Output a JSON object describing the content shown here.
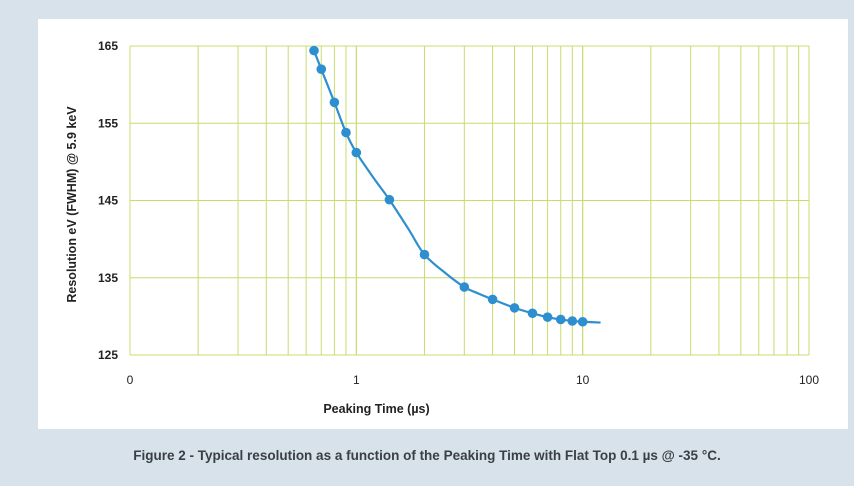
{
  "figure": {
    "caption": "Figure 2 - Typical resolution as a function of the Peaking Time  with Flat Top 0.1 µs @ -35 °C."
  },
  "colors": {
    "background": "#d8e2ea",
    "grid": "#c8dc6e",
    "series": "#2e8fd0"
  },
  "chart_data": {
    "type": "scatter",
    "xlabel": "Peaking Time (µs)",
    "ylabel": "Resolution eV (FWHM) @ 5.9 keV",
    "x_scale": "log",
    "xlim": [
      0.1,
      100
    ],
    "ylim": [
      125,
      165
    ],
    "x_ticks": [
      {
        "value": 0.1,
        "label": "0"
      },
      {
        "value": 1,
        "label": "1"
      },
      {
        "value": 10,
        "label": "10"
      },
      {
        "value": 100,
        "label": "100"
      }
    ],
    "y_ticks": [
      125,
      135,
      145,
      155,
      165
    ],
    "grid": true,
    "series": [
      {
        "x": [
          0.65,
          0.7,
          0.8,
          0.9,
          1.0,
          1.4,
          2.0,
          3.0,
          4.0,
          5.0,
          6.0,
          7.0,
          8.0,
          9.0,
          10.0
        ],
        "y": [
          164.4,
          162.0,
          157.7,
          153.8,
          151.2,
          145.1,
          138.0,
          133.8,
          132.2,
          131.1,
          130.4,
          129.9,
          129.6,
          129.4,
          129.3
        ],
        "curve_x": [
          0.65,
          0.7,
          0.8,
          0.9,
          1.0,
          1.2,
          1.4,
          1.7,
          2.0,
          2.5,
          3.0,
          3.5,
          4.0,
          5.0,
          6.0,
          7.0,
          8.0,
          9.0,
          10.0,
          12.0
        ],
        "curve_y": [
          164.4,
          162.0,
          157.7,
          153.8,
          151.2,
          147.8,
          145.1,
          141.3,
          138.0,
          135.5,
          133.8,
          132.9,
          132.2,
          131.1,
          130.4,
          129.9,
          129.6,
          129.4,
          129.3,
          129.2
        ]
      }
    ]
  }
}
